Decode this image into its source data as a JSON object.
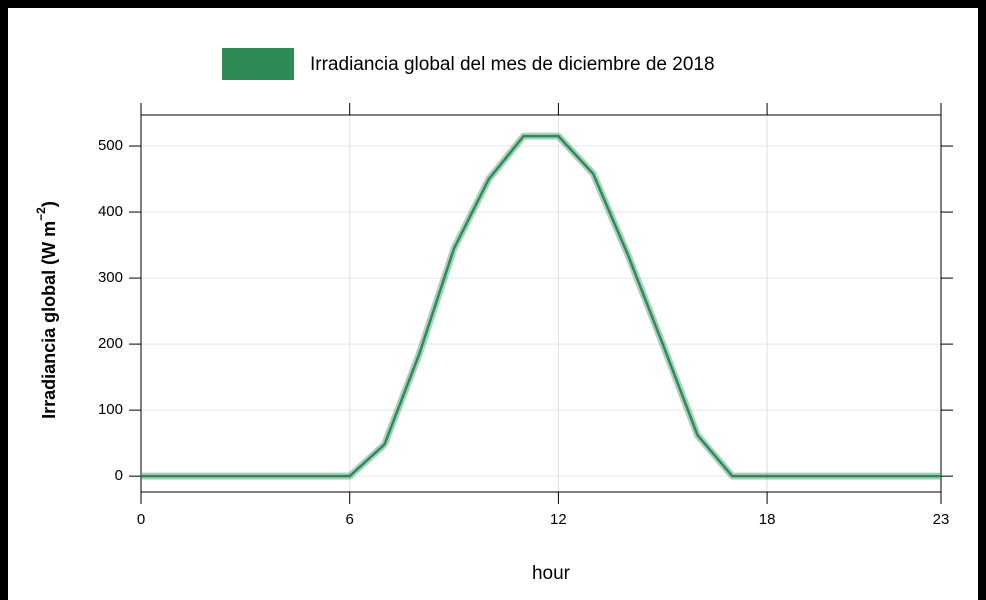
{
  "chart_data": {
    "type": "line",
    "legend_label": "Irradiancia global del mes de diciembre de 2018",
    "x_label": "hour",
    "y_label": [
      "Irradiancia global (W m",
      "−2",
      ")"
    ],
    "x": [
      0,
      1,
      2,
      3,
      4,
      5,
      6,
      7,
      8,
      9,
      10,
      11,
      12,
      13,
      14,
      15,
      16,
      17,
      18,
      19,
      20,
      21,
      22,
      23
    ],
    "series": [
      {
        "name": "Irradiancia global del mes de diciembre de 2018",
        "color": "#2e8b57",
        "values": [
          0,
          0,
          0,
          0,
          0,
          0,
          0,
          48,
          185,
          345,
          450,
          515,
          515,
          458,
          335,
          200,
          62,
          0,
          0,
          0,
          0,
          0,
          0,
          0
        ]
      }
    ],
    "xlim": [
      0,
      23
    ],
    "xticks": [
      0,
      6,
      12,
      18,
      23
    ],
    "ylim": [
      -24,
      547
    ],
    "yticks": [
      0,
      100,
      200,
      300,
      400,
      500
    ],
    "grid": true
  }
}
